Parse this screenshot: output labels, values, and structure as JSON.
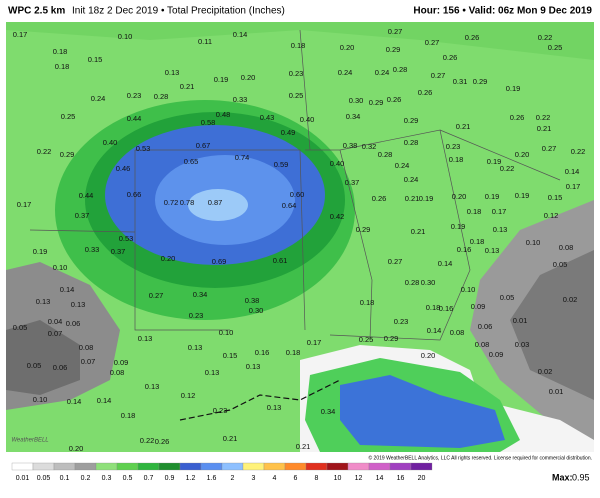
{
  "header": {
    "model": "WPC 2.5 km",
    "subtitle": "Init 18z 2 Dec 2019 • Total Precipitation (Inches)",
    "valid": "Hour: 156 • Valid: 06z Mon 9 Dec 2019"
  },
  "map": {
    "labels": [
      "0.17",
      "0.10",
      "0.11",
      "0.14",
      "0.27",
      "0.26",
      "0.22",
      "0.18",
      "0.15",
      "0.18",
      "0.20",
      "0.29",
      "0.27",
      "0.25",
      "0.18",
      "0.13",
      "0.23",
      "0.24",
      "0.24",
      "0.28",
      "0.27",
      "0.26",
      "0.31",
      "0.29",
      "0.21",
      "0.19",
      "0.20",
      "0.24",
      "0.23",
      "0.28",
      "0.33",
      "0.25",
      "0.30",
      "0.29",
      "0.26",
      "0.26",
      "0.19",
      "0.25",
      "0.44",
      "0.48",
      "0.43",
      "0.40",
      "0.34",
      "0.29",
      "0.21",
      "0.26",
      "0.22",
      "0.58",
      "0.49",
      "0.40",
      "0.53",
      "0.67",
      "0.38",
      "0.32",
      "0.28",
      "0.23",
      "0.21",
      "0.22",
      "0.29",
      "0.65",
      "0.74",
      "0.59",
      "0.40",
      "0.28",
      "0.18",
      "0.19",
      "0.20",
      "0.27",
      "0.22",
      "0.46",
      "0.24",
      "0.22",
      "0.14",
      "0.37",
      "0.24",
      "0.17",
      "0.44",
      "0.66",
      "0.60",
      "0.26",
      "0.21",
      "0.19",
      "0.20",
      "0.19",
      "0.19",
      "0.15",
      "0.17",
      "0.72",
      "0.78",
      "0.87",
      "0.64",
      "0.18",
      "0.17",
      "0.12",
      "0.37",
      "0.42",
      "0.29",
      "0.21",
      "0.19",
      "0.13",
      "0.53",
      "0.18",
      "0.10",
      "0.08",
      "0.19",
      "0.33",
      "0.37",
      "0.61",
      "0.69",
      "0.16",
      "0.13",
      "0.27",
      "0.14",
      "0.05",
      "0.20",
      "0.10",
      "0.14",
      "0.27",
      "0.34",
      "0.28",
      "0.30",
      "0.10",
      "0.05",
      "0.02",
      "0.38",
      "0.18",
      "0.18",
      "0.16",
      "0.09",
      "0.13",
      "0.13",
      "0.30",
      "0.23",
      "0.04",
      "0.06",
      "0.23",
      "0.01",
      "0.05",
      "0.07",
      "0.10",
      "0.14",
      "0.06",
      "0.13",
      "0.25",
      "0.29",
      "0.08",
      "0.08",
      "0.13",
      "0.16",
      "0.18",
      "0.17",
      "0.08",
      "0.03",
      "0.07",
      "0.09",
      "0.15",
      "0.20",
      "0.09",
      "0.05",
      "0.06",
      "0.08",
      "0.13",
      "0.13",
      "0.02",
      "0.10",
      "0.14",
      "0.14",
      "0.13",
      "0.12",
      "0.01",
      "0.18",
      "0.23",
      "0.13",
      "0.34",
      "0.22",
      "0.26",
      "0.21",
      "0.20",
      "0.21"
    ]
  },
  "legend": {
    "labels": [
      "0.01",
      "0.05",
      "0.1",
      "0.2",
      "0.3",
      "0.5",
      "0.7",
      "0.9",
      "1.2",
      "1.6",
      "2",
      "3",
      "4",
      "6",
      "8",
      "10",
      "12",
      "14",
      "16",
      "20"
    ],
    "colors": [
      "#ffffff",
      "#dcdcdc",
      "#bdbdbd",
      "#9e9e9e",
      "#8fe07a",
      "#5fd04f",
      "#2fb53e",
      "#1f8e2e",
      "#3a5fd0",
      "#5b8ff0",
      "#8ec0ff",
      "#fff27a",
      "#ffc24a",
      "#ff8a2a",
      "#e0301e",
      "#a0141a",
      "#f08cc8",
      "#d060c8",
      "#a040c0",
      "#7020a0"
    ],
    "max_label": "Max:",
    "max_value": "0.95"
  },
  "footer": {
    "copyright": "© 2019 WeatherBELL Analytics, LLC All rights reserved. License required for commercial distribution.",
    "logo": "WeatherBELL"
  }
}
